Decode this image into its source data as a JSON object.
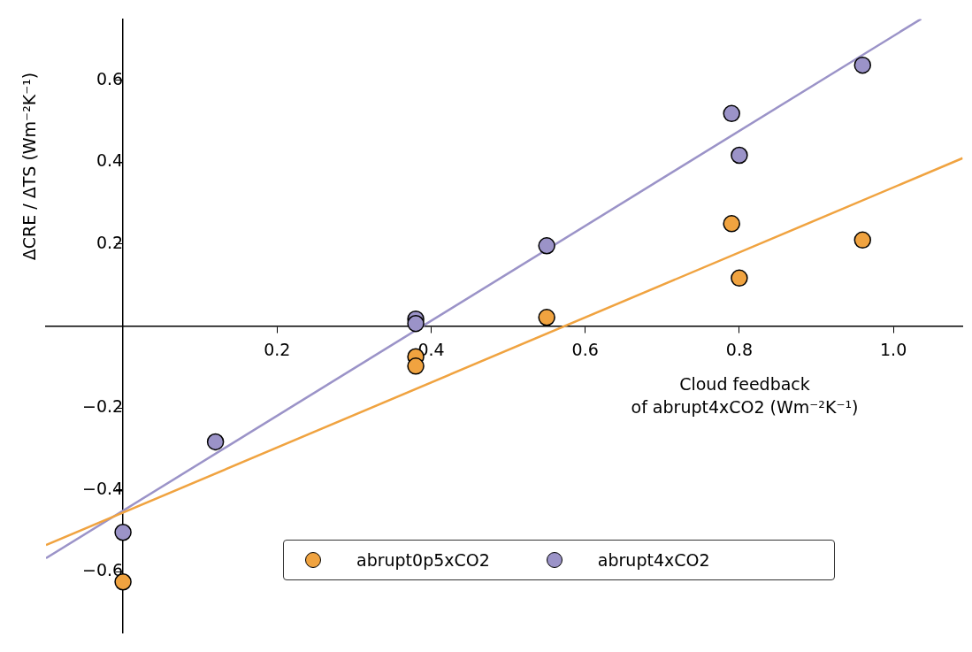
{
  "chart_data": {
    "type": "scatter",
    "xlabel": "Cloud feedback\nof abrupt4xCO2 (Wm⁻²K⁻¹)",
    "ylabel": "ΔCRE / ΔTS (Wm⁻²K⁻¹)",
    "xlim": [
      -0.1,
      1.09
    ],
    "ylim": [
      -0.75,
      0.75
    ],
    "xticks": [
      0.2,
      0.4,
      0.6,
      0.8,
      {
        "value": 1,
        "label": "1.0"
      }
    ],
    "yticks": [
      -0.6,
      -0.4,
      -0.2,
      0.2,
      0.4,
      0.6
    ],
    "grid": false,
    "legend": "bottom",
    "marker": "circle",
    "series": [
      {
        "name": "abrupt0p5xCO2",
        "color": "#f0a340",
        "x": [
          0,
          0.38,
          0.38,
          0.55,
          0.79,
          0.8,
          0.96
        ],
        "values": [
          -0.625,
          -0.075,
          -0.098,
          0.021,
          0.25,
          0.117,
          0.21
        ]
      },
      {
        "name": "abrupt4xCO2",
        "color": "#9b93c8",
        "x": [
          0,
          0.12,
          0.38,
          0.38,
          0.55,
          0.79,
          0.8,
          0.96
        ],
        "values": [
          -0.504,
          -0.283,
          0.017,
          0.006,
          0.196,
          0.519,
          0.417,
          0.637
        ]
      },
      {
        "type": "line",
        "color": "#f0a340",
        "marker": "none",
        "x": [
          -0.1,
          1.09
        ],
        "values": [
          -0.535,
          0.41
        ]
      },
      {
        "type": "line",
        "color": "#9b93c8",
        "marker": "none",
        "x": [
          -0.1,
          1.036
        ],
        "values": [
          -0.567,
          0.75
        ]
      }
    ]
  }
}
